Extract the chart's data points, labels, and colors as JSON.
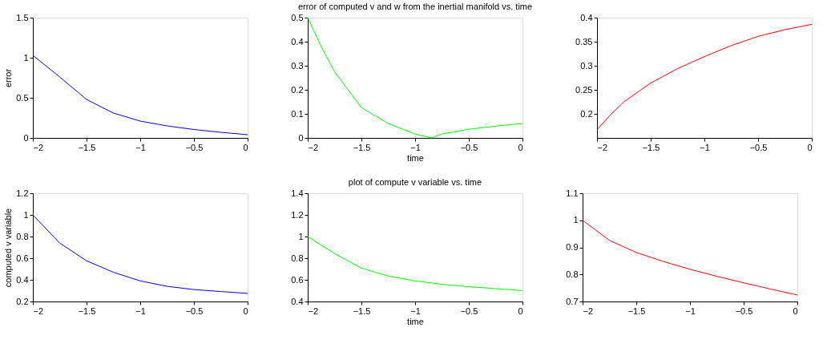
{
  "chart_data": [
    {
      "type": "line",
      "ylabel": "error",
      "x": [
        -2,
        -1.75,
        -1.5,
        -1.25,
        -1,
        -0.75,
        -0.5,
        -0.25,
        0
      ],
      "xlim": [
        -2,
        0
      ],
      "ylim": [
        0,
        1.5
      ],
      "xticks": [
        -2,
        -1.5,
        -1,
        -0.5,
        0
      ],
      "yticks": [
        0,
        0.5,
        1,
        1.5
      ],
      "grid": false,
      "series": [
        {
          "color": "#0000ff",
          "values": [
            1.03,
            0.76,
            0.48,
            0.31,
            0.21,
            0.15,
            0.105,
            0.07,
            0.04
          ]
        }
      ]
    },
    {
      "type": "line",
      "title": "error of computed v and w from the inertial manifold vs. time",
      "xlabel": "time",
      "x": [
        -2,
        -1.875,
        -1.75,
        -1.5,
        -1.25,
        -1,
        -0.85,
        -0.75,
        -0.5,
        -0.25,
        0
      ],
      "xlim": [
        -2,
        0
      ],
      "ylim": [
        0,
        0.5
      ],
      "xticks": [
        -2,
        -1.5,
        -1,
        -0.5,
        0
      ],
      "yticks": [
        0,
        0.1,
        0.2,
        0.3,
        0.4,
        0.5
      ],
      "grid": false,
      "series": [
        {
          "color": "#00ff00",
          "values": [
            0.5,
            0.38,
            0.275,
            0.126,
            0.06,
            0.016,
            0,
            0.016,
            0.036,
            0.049,
            0.06
          ]
        }
      ]
    },
    {
      "type": "line",
      "x": [
        -2,
        -1.875,
        -1.75,
        -1.5,
        -1.25,
        -1,
        -0.75,
        -0.5,
        -0.25,
        0
      ],
      "xlim": [
        -2,
        0
      ],
      "ylim": [
        0.15,
        0.4
      ],
      "xticks": [
        -2,
        -1.5,
        -1,
        -0.5,
        0
      ],
      "yticks": [
        0.2,
        0.25,
        0.3,
        0.35,
        0.4
      ],
      "grid": false,
      "series": [
        {
          "color": "#ff0000",
          "values": [
            0.167,
            0.198,
            0.225,
            0.264,
            0.294,
            0.319,
            0.342,
            0.361,
            0.375,
            0.386
          ]
        }
      ]
    },
    {
      "type": "line",
      "ylabel": "computed v variable",
      "x": [
        -2,
        -1.75,
        -1.5,
        -1.25,
        -1,
        -0.75,
        -0.5,
        -0.25,
        0
      ],
      "xlim": [
        -2,
        0
      ],
      "ylim": [
        0.2,
        1.2
      ],
      "xticks": [
        -2,
        -1.5,
        -1,
        -0.5,
        0
      ],
      "yticks": [
        0.2,
        0.4,
        0.6,
        0.8,
        1,
        1.2
      ],
      "grid": false,
      "series": [
        {
          "color": "#0000ff",
          "values": [
            1.0,
            0.74,
            0.576,
            0.47,
            0.39,
            0.34,
            0.31,
            0.292,
            0.275
          ]
        }
      ]
    },
    {
      "type": "line",
      "title": "plot of compute v variable vs. time",
      "xlabel": "time",
      "x": [
        -2,
        -1.75,
        -1.5,
        -1.25,
        -1,
        -0.75,
        -0.5,
        -0.25,
        0
      ],
      "xlim": [
        -2,
        0
      ],
      "ylim": [
        0.4,
        1.4
      ],
      "xticks": [
        -2,
        -1.5,
        -1,
        -0.5,
        0
      ],
      "yticks": [
        0.4,
        0.6,
        0.8,
        1,
        1.2,
        1.4
      ],
      "grid": false,
      "series": [
        {
          "color": "#00ff00",
          "values": [
            1.0,
            0.843,
            0.708,
            0.635,
            0.59,
            0.558,
            0.536,
            0.519,
            0.5
          ]
        }
      ]
    },
    {
      "type": "line",
      "x": [
        -2,
        -1.75,
        -1.5,
        -1.25,
        -1,
        -0.75,
        -0.5,
        -0.25,
        0
      ],
      "xlim": [
        -2,
        0
      ],
      "ylim": [
        0.7,
        1.1
      ],
      "xticks": [
        -2,
        -1.5,
        -1,
        -0.5,
        0
      ],
      "yticks": [
        0.7,
        0.8,
        0.9,
        1,
        1.1
      ],
      "grid": false,
      "series": [
        {
          "color": "#ff0000",
          "values": [
            1.0,
            0.926,
            0.881,
            0.848,
            0.819,
            0.793,
            0.769,
            0.746,
            0.724
          ]
        }
      ]
    }
  ]
}
